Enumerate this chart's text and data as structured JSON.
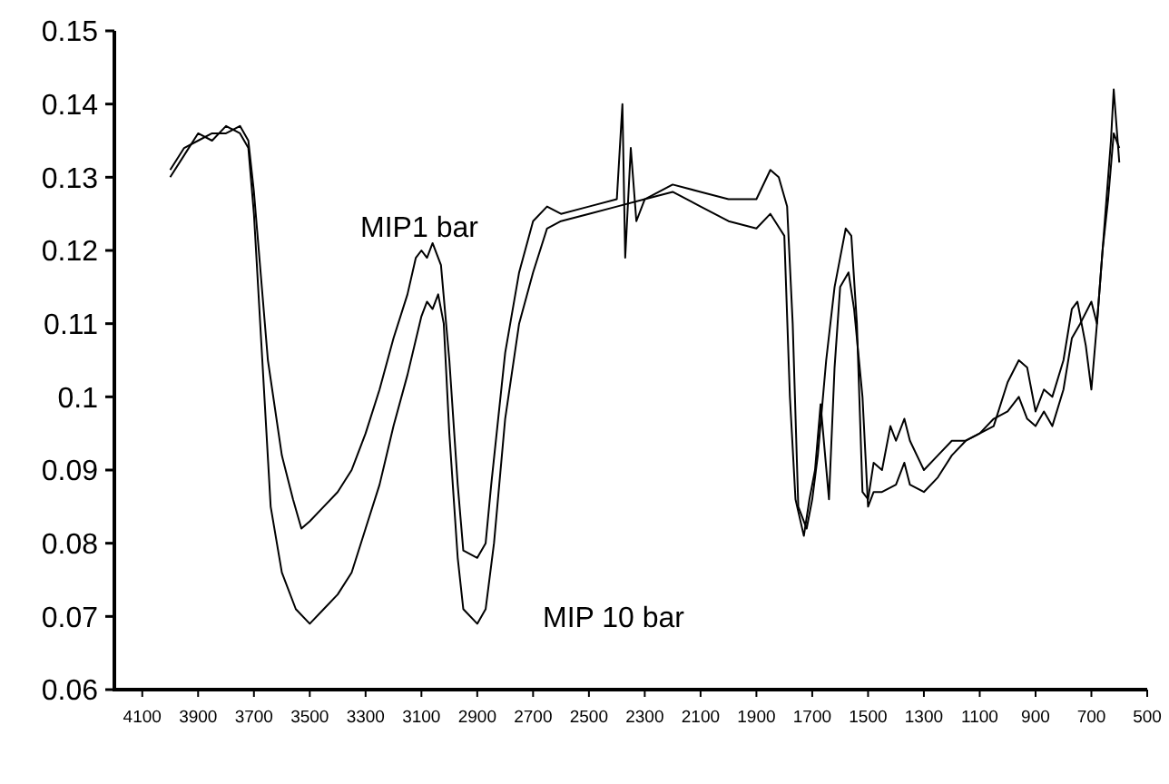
{
  "chart_data": {
    "type": "line",
    "xlim": [
      4200,
      500
    ],
    "ylim": [
      0.06,
      0.15
    ],
    "xticks": [
      4100,
      3900,
      3700,
      3500,
      3300,
      3100,
      2900,
      2700,
      2500,
      2300,
      2100,
      1900,
      1700,
      1500,
      1300,
      1100,
      900,
      700,
      500
    ],
    "yticks": [
      0.06,
      0.07,
      0.08,
      0.09,
      0.1,
      0.11,
      0.12,
      0.13,
      0.14,
      0.15
    ],
    "grid": false,
    "marker": "none",
    "line_style": "solid",
    "annotations": [
      "MIP1 bar",
      "MIP 10 bar"
    ],
    "series": [
      {
        "color": "#000000",
        "x": [
          4000,
          3950,
          3900,
          3850,
          3800,
          3750,
          3720,
          3700,
          3650,
          3600,
          3560,
          3530,
          3500,
          3450,
          3400,
          3350,
          3300,
          3250,
          3200,
          3150,
          3120,
          3100,
          3080,
          3060,
          3030,
          3000,
          2970,
          2950,
          2900,
          2870,
          2850,
          2800,
          2750,
          2700,
          2650,
          2600,
          2500,
          2400,
          2380,
          2370,
          2350,
          2330,
          2300,
          2200,
          2100,
          2000,
          1900,
          1850,
          1820,
          1790,
          1770,
          1750,
          1720,
          1700,
          1680,
          1650,
          1620,
          1600,
          1580,
          1560,
          1540,
          1520,
          1500,
          1480,
          1450,
          1420,
          1400,
          1370,
          1350,
          1300,
          1250,
          1200,
          1150,
          1100,
          1050,
          1000,
          960,
          930,
          900,
          870,
          840,
          800,
          770,
          750,
          720,
          700,
          680,
          650,
          630,
          620,
          600
        ],
        "values": [
          0.131,
          0.134,
          0.135,
          0.136,
          0.136,
          0.137,
          0.135,
          0.128,
          0.105,
          0.092,
          0.086,
          0.082,
          0.083,
          0.085,
          0.087,
          0.09,
          0.095,
          0.101,
          0.108,
          0.114,
          0.119,
          0.12,
          0.119,
          0.121,
          0.118,
          0.105,
          0.088,
          0.079,
          0.078,
          0.08,
          0.088,
          0.106,
          0.117,
          0.124,
          0.126,
          0.125,
          0.126,
          0.127,
          0.14,
          0.119,
          0.134,
          0.124,
          0.127,
          0.129,
          0.128,
          0.127,
          0.127,
          0.131,
          0.13,
          0.126,
          0.11,
          0.085,
          0.082,
          0.086,
          0.092,
          0.105,
          0.115,
          0.119,
          0.123,
          0.122,
          0.11,
          0.087,
          0.086,
          0.091,
          0.09,
          0.096,
          0.094,
          0.097,
          0.094,
          0.09,
          0.092,
          0.094,
          0.094,
          0.095,
          0.096,
          0.102,
          0.105,
          0.104,
          0.098,
          0.101,
          0.1,
          0.105,
          0.112,
          0.113,
          0.107,
          0.101,
          0.11,
          0.125,
          0.135,
          0.142,
          0.132
        ]
      },
      {
        "color": "#000000",
        "x": [
          4000,
          3950,
          3900,
          3850,
          3800,
          3750,
          3720,
          3700,
          3670,
          3640,
          3600,
          3550,
          3500,
          3450,
          3400,
          3350,
          3300,
          3250,
          3200,
          3150,
          3100,
          3080,
          3060,
          3040,
          3020,
          3000,
          2970,
          2950,
          2900,
          2870,
          2840,
          2800,
          2750,
          2700,
          2650,
          2600,
          2500,
          2400,
          2300,
          2200,
          2100,
          2000,
          1900,
          1850,
          1800,
          1780,
          1760,
          1730,
          1710,
          1690,
          1670,
          1640,
          1620,
          1600,
          1570,
          1550,
          1520,
          1500,
          1480,
          1450,
          1400,
          1370,
          1350,
          1300,
          1250,
          1200,
          1150,
          1100,
          1050,
          1000,
          960,
          930,
          900,
          870,
          840,
          800,
          770,
          740,
          700,
          680,
          660,
          640,
          620,
          600
        ],
        "values": [
          0.13,
          0.133,
          0.136,
          0.135,
          0.137,
          0.136,
          0.134,
          0.125,
          0.105,
          0.085,
          0.076,
          0.071,
          0.069,
          0.071,
          0.073,
          0.076,
          0.082,
          0.088,
          0.096,
          0.103,
          0.111,
          0.113,
          0.112,
          0.114,
          0.11,
          0.095,
          0.078,
          0.071,
          0.069,
          0.071,
          0.08,
          0.097,
          0.11,
          0.117,
          0.123,
          0.124,
          0.125,
          0.126,
          0.127,
          0.128,
          0.126,
          0.124,
          0.123,
          0.125,
          0.122,
          0.1,
          0.086,
          0.081,
          0.086,
          0.09,
          0.099,
          0.086,
          0.104,
          0.115,
          0.117,
          0.112,
          0.1,
          0.085,
          0.087,
          0.087,
          0.088,
          0.091,
          0.088,
          0.087,
          0.089,
          0.092,
          0.094,
          0.095,
          0.097,
          0.098,
          0.1,
          0.097,
          0.096,
          0.098,
          0.096,
          0.101,
          0.108,
          0.11,
          0.113,
          0.11,
          0.12,
          0.127,
          0.136,
          0.134
        ]
      }
    ]
  }
}
